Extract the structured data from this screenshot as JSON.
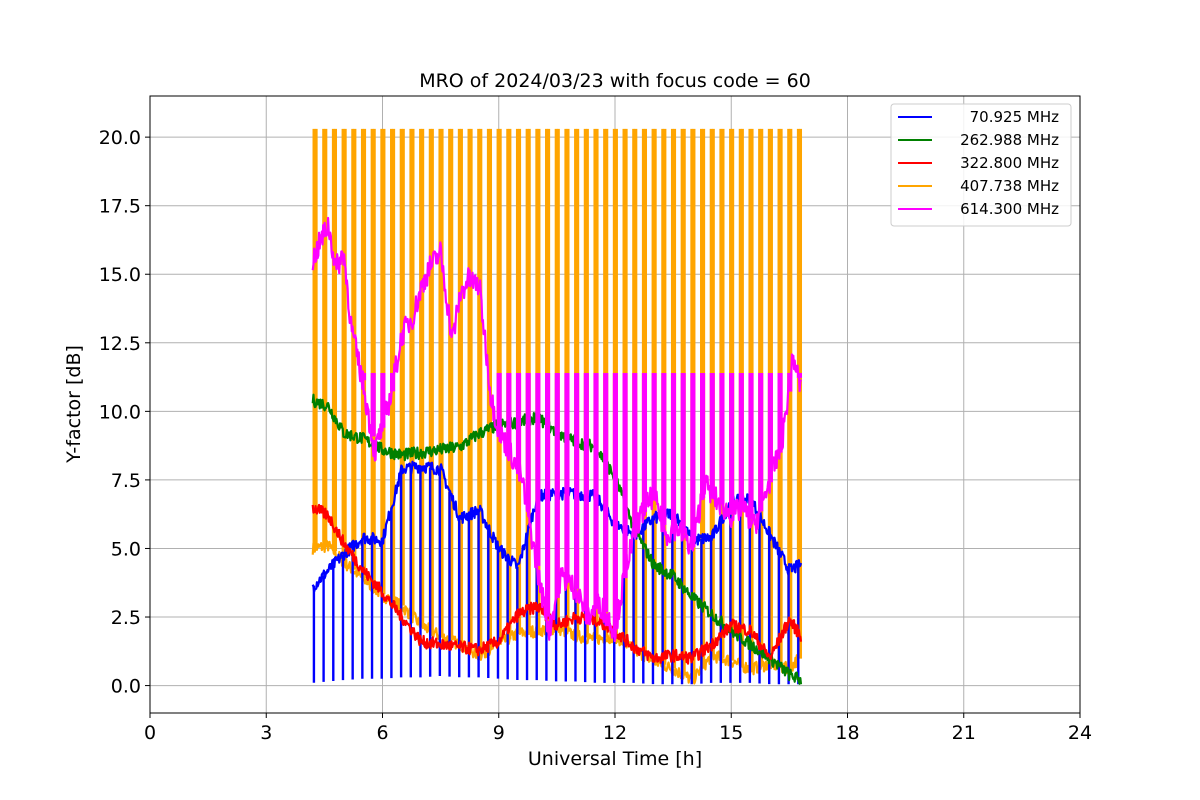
{
  "chart_data": {
    "type": "line",
    "title": "MRO of 2024/03/23 with focus code = 60",
    "xlabel": "Universal Time [h]",
    "ylabel": "Y-factor [dB]",
    "xlim": [
      0,
      24
    ],
    "ylim": [
      -1.0,
      21.5
    ],
    "xticks": [
      0,
      3,
      6,
      9,
      12,
      15,
      18,
      21,
      24
    ],
    "xtick_labels": [
      "0",
      "3",
      "6",
      "9",
      "12",
      "15",
      "18",
      "21",
      "24"
    ],
    "yticks": [
      0.0,
      2.5,
      5.0,
      7.5,
      10.0,
      12.5,
      15.0,
      17.5,
      20.0
    ],
    "ytick_labels": [
      "0.0",
      "2.5",
      "5.0",
      "7.5",
      "10.0",
      "12.5",
      "15.0",
      "17.5",
      "20.0"
    ],
    "grid": true,
    "legend_position": "top-right",
    "x_range_observed": [
      4.2,
      16.8
    ],
    "calibration_spike_interval_h": 0.25,
    "series": [
      {
        "name": "70.925 MHz",
        "color": "#0000ff",
        "x": [
          4.2,
          4.6,
          5.0,
          5.5,
          6.0,
          6.5,
          7.0,
          7.5,
          8.0,
          8.5,
          9.0,
          9.5,
          10.0,
          10.5,
          11.0,
          11.5,
          12.0,
          12.5,
          13.0,
          13.5,
          14.0,
          14.5,
          15.0,
          15.5,
          16.0,
          16.5,
          16.8
        ],
        "y": [
          3.6,
          4.2,
          4.8,
          5.4,
          5.3,
          7.9,
          8.0,
          7.9,
          6.1,
          6.4,
          5.0,
          4.3,
          6.9,
          7.0,
          7.0,
          6.9,
          5.9,
          5.5,
          6.1,
          6.3,
          5.3,
          5.4,
          6.7,
          6.8,
          5.5,
          4.2,
          4.4
        ],
        "spike_min": [
          0.1,
          0.15,
          0.2,
          0.25,
          0.25,
          0.3,
          0.3,
          0.35,
          0.3,
          0.3,
          0.25,
          0.2,
          0.2,
          0.15,
          0.15,
          0.1,
          0.1,
          0.1,
          0.05,
          0.05,
          0.05,
          0.1,
          0.1,
          0.1,
          0.05,
          0.05,
          0.05
        ]
      },
      {
        "name": "262.988 MHz",
        "color": "#008000",
        "x": [
          4.2,
          4.6,
          5.0,
          5.5,
          6.0,
          6.5,
          7.0,
          7.5,
          8.0,
          8.5,
          9.0,
          9.5,
          10.0,
          10.5,
          11.0,
          11.5,
          12.0,
          12.5,
          13.0,
          13.5,
          14.0,
          14.5,
          15.0,
          15.5,
          16.0,
          16.5,
          16.8
        ],
        "y": [
          10.4,
          10.2,
          9.2,
          9.0,
          8.6,
          8.4,
          8.5,
          8.6,
          8.7,
          9.2,
          9.5,
          9.6,
          9.8,
          9.2,
          8.9,
          8.7,
          7.6,
          5.7,
          4.4,
          4.0,
          3.2,
          2.6,
          2.0,
          1.5,
          1.0,
          0.4,
          0.2
        ]
      },
      {
        "name": "322.800 MHz",
        "color": "#ff0000",
        "x": [
          4.2,
          4.6,
          5.0,
          5.5,
          6.0,
          6.5,
          7.0,
          7.5,
          8.0,
          8.5,
          9.0,
          9.5,
          10.0,
          10.5,
          11.0,
          11.5,
          12.0,
          12.5,
          13.0,
          13.5,
          14.0,
          14.5,
          15.0,
          15.5,
          16.0,
          16.5,
          16.8
        ],
        "y": [
          6.5,
          6.2,
          5.2,
          4.2,
          3.4,
          2.5,
          1.6,
          1.5,
          1.4,
          1.3,
          1.6,
          2.6,
          2.9,
          2.2,
          2.5,
          2.4,
          2.0,
          1.4,
          1.0,
          1.1,
          1.0,
          1.5,
          2.2,
          2.0,
          1.0,
          2.4,
          1.8
        ]
      },
      {
        "name": "407.738 MHz",
        "color": "#ffa500",
        "x": [
          4.2,
          4.6,
          5.0,
          5.5,
          6.0,
          6.5,
          7.0,
          7.5,
          8.0,
          8.5,
          9.0,
          9.5,
          10.0,
          10.5,
          11.0,
          11.5,
          12.0,
          12.5,
          13.0,
          13.5,
          14.0,
          14.5,
          15.0,
          15.5,
          16.0,
          16.5,
          16.8
        ],
        "y": [
          5.0,
          5.1,
          4.5,
          3.9,
          3.3,
          2.9,
          2.2,
          1.8,
          1.5,
          1.1,
          1.5,
          1.9,
          2.0,
          2.1,
          1.8,
          1.7,
          1.8,
          1.3,
          0.9,
          0.6,
          0.2,
          1.1,
          0.9,
          0.6,
          0.8,
          0.6,
          1.1
        ],
        "spike_max": 20.3
      },
      {
        "name": "614.300 MHz",
        "color": "#ff00ff",
        "x": [
          4.2,
          4.4,
          4.6,
          4.8,
          5.0,
          5.2,
          5.5,
          5.8,
          6.0,
          6.2,
          6.5,
          6.8,
          7.0,
          7.2,
          7.5,
          7.8,
          8.0,
          8.2,
          8.5,
          8.8,
          9.0,
          9.3,
          9.6,
          10.0,
          10.3,
          10.6,
          11.0,
          11.3,
          11.6,
          12.0,
          12.3,
          12.6,
          13.0,
          13.3,
          13.6,
          14.0,
          14.3,
          14.6,
          15.0,
          15.3,
          15.6,
          16.0,
          16.3,
          16.6,
          16.8
        ],
        "y": [
          15.5,
          16.2,
          16.8,
          15.2,
          15.8,
          13.0,
          11.0,
          8.5,
          9.5,
          10.5,
          12.8,
          13.5,
          14.5,
          15.2,
          15.8,
          12.6,
          14.2,
          14.8,
          14.6,
          10.5,
          9.3,
          8.5,
          7.5,
          4.2,
          2.0,
          4.0,
          3.5,
          2.5,
          3.0,
          2.0,
          4.5,
          6.0,
          7.0,
          5.5,
          5.8,
          5.0,
          7.4,
          6.8,
          6.2,
          6.5,
          5.8,
          7.5,
          8.8,
          12.0,
          10.8
        ],
        "spike_max": 11.4
      }
    ]
  }
}
